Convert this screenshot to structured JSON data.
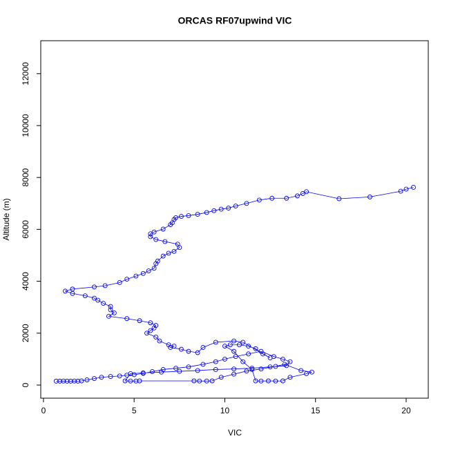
{
  "chart_data": {
    "type": "line",
    "markers": true,
    "title": "ORCAS RF07upwind VIC",
    "x_label": "VIC",
    "y_label": "Altitude (m)",
    "color": "#0000ff",
    "x": [
      0.7,
      0.9,
      1.1,
      1.3,
      1.5,
      1.7,
      1.9,
      2.1,
      2.4,
      2.8,
      3.2,
      3.7,
      4.2,
      4.6,
      5.0,
      5.5,
      6.0,
      6.6,
      7.3,
      8.0,
      8.8,
      9.5,
      10.0,
      10.6,
      11.3,
      12.0,
      12.7,
      13.2,
      13.6,
      13.4,
      12.5,
      11.5,
      10.5,
      9.5,
      8.5,
      7.5,
      6.5,
      5.5,
      4.8,
      4.5,
      4.8,
      5.1,
      5.3,
      8.3,
      8.6,
      9.0,
      9.3,
      9.8,
      10.5,
      11.2,
      12.0,
      12.8,
      13.3,
      14.2,
      14.8,
      14.5,
      13.6,
      13.2,
      12.8,
      12.4,
      12.0,
      11.7,
      11.5,
      11.0,
      10.5,
      10.0,
      10.3,
      10.8,
      11.3,
      11.7,
      12.1,
      12.5,
      11.0,
      10.5,
      9.5,
      8.8,
      8.5,
      8.0,
      7.6,
      7.0,
      7.2,
      6.9,
      6.4,
      6.2,
      5.7,
      5.9,
      6.1,
      6.2,
      5.9,
      5.3,
      4.6,
      3.6,
      3.9,
      3.7,
      3.7,
      3.3,
      3.0,
      2.8,
      2.3,
      1.6,
      1.2,
      1.6,
      2.8,
      3.4,
      4.2,
      4.6,
      5.1,
      5.5,
      5.8,
      6.1,
      6.2,
      6.3,
      6.6,
      6.9,
      7.2,
      7.5,
      7.4,
      6.7,
      6.2,
      5.9,
      5.9,
      6.1,
      6.6,
      7.0,
      7.1,
      7.2,
      7.3,
      7.6,
      8.0,
      8.5,
      9.0,
      9.4,
      9.8,
      10.2,
      10.6,
      11.2,
      11.9,
      12.6,
      13.4,
      14.0,
      14.3,
      14.5,
      16.3,
      18.0,
      19.7,
      20.0,
      20.4
    ],
    "values": [
      150,
      150,
      155,
      150,
      150,
      155,
      150,
      160,
      200,
      250,
      300,
      330,
      350,
      380,
      400,
      450,
      520,
      600,
      650,
      700,
      800,
      900,
      1000,
      1100,
      1200,
      1300,
      1100,
      1000,
      900,
      750,
      700,
      650,
      620,
      600,
      560,
      530,
      500,
      470,
      440,
      160,
      155,
      155,
      160,
      160,
      155,
      155,
      160,
      300,
      420,
      540,
      620,
      720,
      800,
      560,
      500,
      440,
      300,
      160,
      155,
      160,
      155,
      160,
      600,
      900,
      1300,
      1500,
      1550,
      1550,
      1500,
      1400,
      1200,
      1050,
      1650,
      1700,
      1650,
      1450,
      1250,
      1300,
      1380,
      1450,
      1500,
      1550,
      1700,
      1850,
      2000,
      2100,
      2200,
      2300,
      2400,
      2480,
      2560,
      2650,
      2780,
      2900,
      3030,
      3150,
      3270,
      3350,
      3440,
      3530,
      3620,
      3700,
      3780,
      3830,
      3950,
      4080,
      4200,
      4300,
      4400,
      4500,
      4680,
      4780,
      4970,
      5080,
      5150,
      5300,
      5430,
      5530,
      5610,
      5720,
      5830,
      5900,
      6010,
      6180,
      6250,
      6380,
      6450,
      6500,
      6530,
      6580,
      6650,
      6720,
      6780,
      6820,
      6900,
      7000,
      7130,
      7200,
      7200,
      7290,
      7380,
      7450,
      7180,
      7250,
      7470,
      7550,
      7620
    ],
    "xlim": [
      -0.15,
      21.22
    ],
    "ylim": [
      -505,
      13270
    ],
    "xticks": [
      0,
      5,
      10,
      15,
      20
    ],
    "yticks": [
      0,
      2000,
      4000,
      6000,
      8000,
      10000,
      12000
    ]
  }
}
